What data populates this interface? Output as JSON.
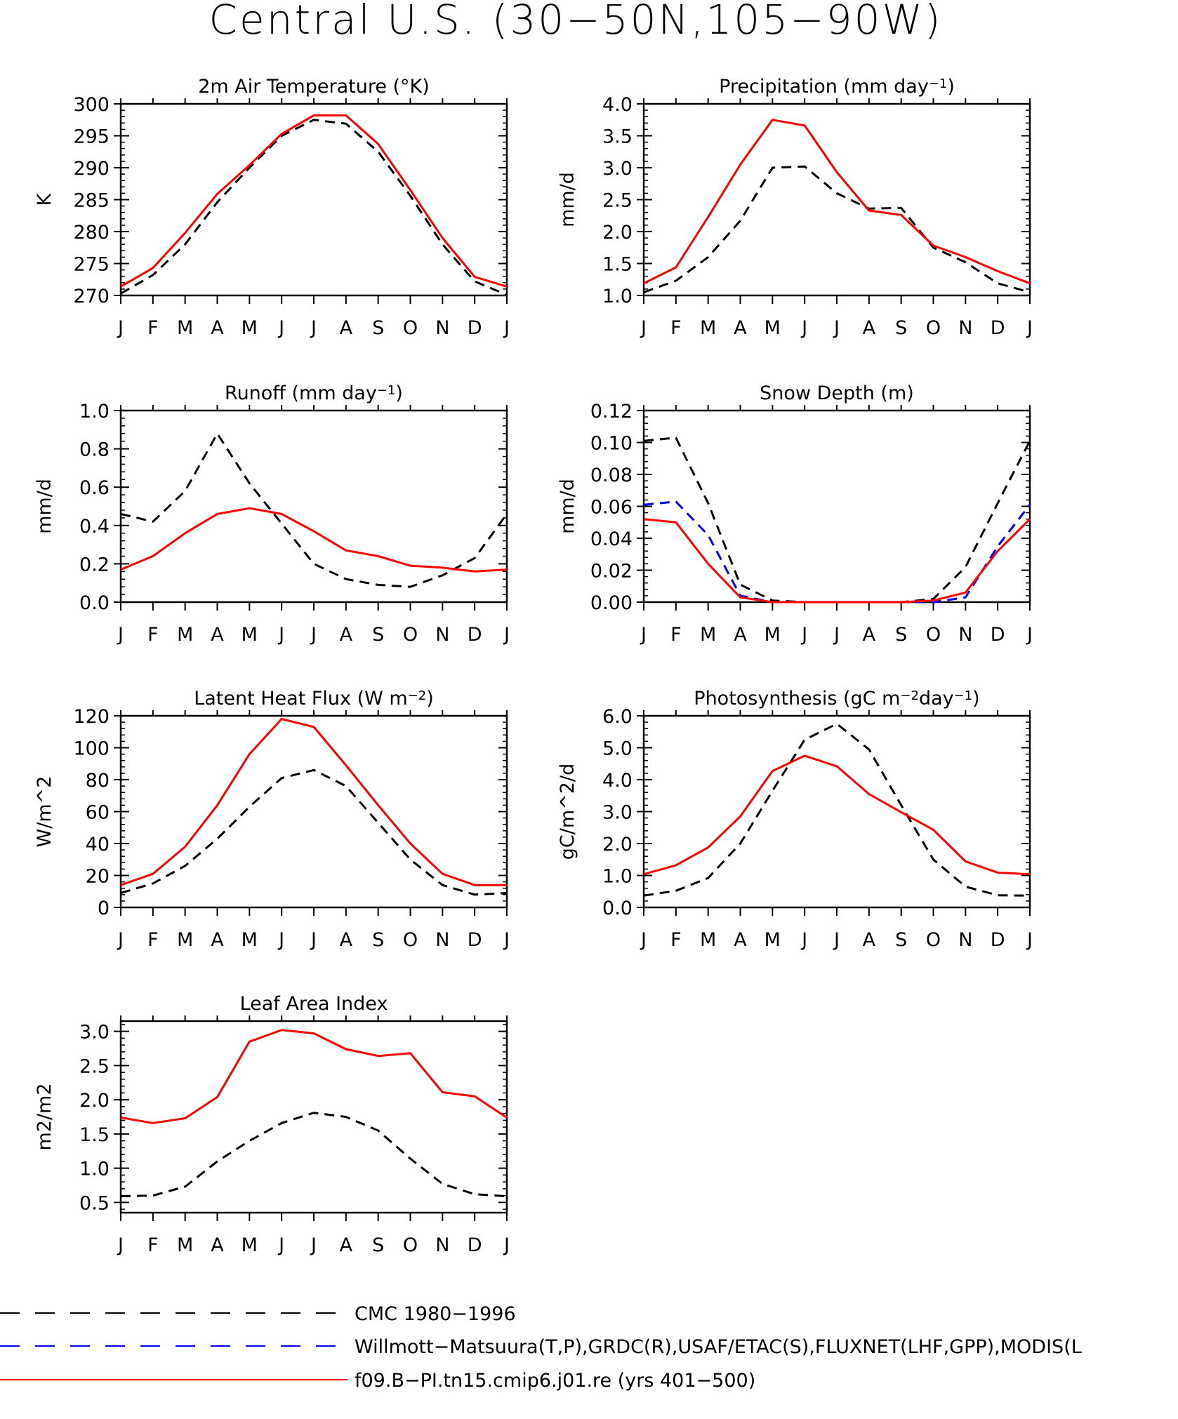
{
  "title": "Central U.S. (30−50N,105−90W)",
  "month_labels": [
    "J",
    "F",
    "M",
    "A",
    "M",
    "J",
    "J",
    "A",
    "S",
    "O",
    "N",
    "D",
    "J"
  ],
  "legend": [
    {
      "label": "CMC 1980−1996",
      "color": "#000000",
      "dash": true
    },
    {
      "label": "Willmott−Matsuura(T,P),GRDC(R),USAF/ETAC(S),FLUXNET(LHF,GPP),MODIS(L",
      "color": "#0000ff",
      "dash": true
    },
    {
      "label": "f09.B−PI.tn15.cmip6.j01.re (yrs 401−500)",
      "color": "#ff0000",
      "dash": false
    }
  ],
  "colors": {
    "cmc": "#000000",
    "obs": "#0000ff",
    "model": "#ff0000"
  },
  "chart_data": [
    {
      "type": "line",
      "id": "temp",
      "title": "2m Air Temperature (°K)",
      "ylabel": "K",
      "ylim": [
        270,
        300
      ],
      "yticks": [
        270,
        275,
        280,
        285,
        290,
        295,
        300
      ],
      "ytick_labels": [
        "270",
        "275",
        "280",
        "285",
        "290",
        "295",
        "300"
      ],
      "x": [
        "J",
        "F",
        "M",
        "A",
        "M",
        "J",
        "J",
        "A",
        "S",
        "O",
        "N",
        "D",
        "J"
      ],
      "series": [
        {
          "key": "cmc",
          "values": [
            270.3,
            273.2,
            278.0,
            284.6,
            290.0,
            295.0,
            297.5,
            296.9,
            292.5,
            285.6,
            278.0,
            272.2,
            270.1
          ]
        },
        {
          "key": "model",
          "values": [
            271.4,
            274.3,
            279.8,
            285.9,
            290.4,
            295.3,
            298.2,
            298.2,
            293.7,
            286.5,
            279.0,
            272.9,
            271.4
          ]
        }
      ]
    },
    {
      "type": "line",
      "id": "precip",
      "title": "Precipitation (mm day⁻¹)",
      "ylabel": "mm/d",
      "ylim": [
        1.0,
        4.0
      ],
      "yticks": [
        1.0,
        1.5,
        2.0,
        2.5,
        3.0,
        3.5,
        4.0
      ],
      "ytick_labels": [
        "1.0",
        "1.5",
        "2.0",
        "2.5",
        "3.0",
        "3.5",
        "4.0"
      ],
      "x": [
        "J",
        "F",
        "M",
        "A",
        "M",
        "J",
        "J",
        "A",
        "S",
        "O",
        "N",
        "D",
        "J"
      ],
      "series": [
        {
          "key": "cmc",
          "values": [
            1.05,
            1.23,
            1.6,
            2.17,
            3.0,
            3.02,
            2.6,
            2.36,
            2.37,
            1.75,
            1.52,
            1.19,
            1.05
          ]
        },
        {
          "key": "model",
          "values": [
            1.19,
            1.44,
            2.23,
            3.05,
            3.75,
            3.66,
            2.93,
            2.33,
            2.26,
            1.78,
            1.6,
            1.38,
            1.19
          ]
        }
      ]
    },
    {
      "type": "line",
      "id": "runoff",
      "title": "Runoff (mm day⁻¹)",
      "ylabel": "mm/d",
      "ylim": [
        0.0,
        1.0
      ],
      "yticks": [
        0.0,
        0.2,
        0.4,
        0.6,
        0.8,
        1.0
      ],
      "ytick_labels": [
        "0.0",
        "0.2",
        "0.4",
        "0.6",
        "0.8",
        "1.0"
      ],
      "x": [
        "J",
        "F",
        "M",
        "A",
        "M",
        "J",
        "J",
        "A",
        "S",
        "O",
        "N",
        "D",
        "J"
      ],
      "series": [
        {
          "key": "cmc",
          "values": [
            0.46,
            0.42,
            0.58,
            0.88,
            0.62,
            0.41,
            0.2,
            0.12,
            0.09,
            0.08,
            0.14,
            0.23,
            0.46
          ]
        },
        {
          "key": "model",
          "values": [
            0.17,
            0.24,
            0.36,
            0.46,
            0.49,
            0.46,
            0.37,
            0.27,
            0.24,
            0.19,
            0.18,
            0.16,
            0.17
          ]
        }
      ]
    },
    {
      "type": "line",
      "id": "snow",
      "title": "Snow Depth (m)",
      "ylabel": "mm/d",
      "ylim": [
        0.0,
        0.12
      ],
      "yticks": [
        0.0,
        0.02,
        0.04,
        0.06,
        0.08,
        0.1,
        0.12
      ],
      "ytick_labels": [
        "0.00",
        "0.02",
        "0.04",
        "0.06",
        "0.08",
        "0.10",
        "0.12"
      ],
      "x": [
        "J",
        "F",
        "M",
        "A",
        "M",
        "J",
        "J",
        "A",
        "S",
        "O",
        "N",
        "D",
        "J"
      ],
      "series": [
        {
          "key": "cmc",
          "values": [
            0.101,
            0.103,
            0.062,
            0.011,
            0.001,
            0.0,
            0.0,
            0.0,
            0.0,
            0.002,
            0.022,
            0.062,
            0.101
          ]
        },
        {
          "key": "obs",
          "values": [
            0.061,
            0.063,
            0.042,
            0.004,
            0.0,
            0.0,
            0.0,
            0.0,
            0.0,
            0.0,
            0.003,
            0.035,
            0.061
          ]
        },
        {
          "key": "model",
          "values": [
            0.052,
            0.05,
            0.024,
            0.003,
            0.0,
            0.0,
            0.0,
            0.0,
            0.0,
            0.001,
            0.006,
            0.032,
            0.052
          ]
        }
      ]
    },
    {
      "type": "line",
      "id": "lhf",
      "title": "Latent Heat Flux (W m⁻²)",
      "ylabel": "W/m^2",
      "ylim": [
        0,
        120
      ],
      "yticks": [
        0,
        20,
        40,
        60,
        80,
        100,
        120
      ],
      "ytick_labels": [
        "0",
        "20",
        "40",
        "60",
        "80",
        "100",
        "120"
      ],
      "x": [
        "J",
        "F",
        "M",
        "A",
        "M",
        "J",
        "J",
        "A",
        "S",
        "O",
        "N",
        "D",
        "J"
      ],
      "series": [
        {
          "key": "cmc",
          "values": [
            9,
            15,
            26,
            43,
            63,
            81,
            86,
            76,
            53,
            30,
            14,
            8,
            9
          ]
        },
        {
          "key": "model",
          "values": [
            14,
            21,
            38,
            64,
            96,
            118,
            113,
            89,
            64,
            40,
            21,
            14,
            14
          ]
        }
      ]
    },
    {
      "type": "line",
      "id": "gpp",
      "title": "Photosynthesis (gC m⁻²day⁻¹)",
      "ylabel": "gC/m^2/d",
      "ylim": [
        0.0,
        6.0
      ],
      "yticks": [
        0.0,
        1.0,
        2.0,
        3.0,
        4.0,
        5.0,
        6.0
      ],
      "ytick_labels": [
        "0.0",
        "1.0",
        "2.0",
        "3.0",
        "4.0",
        "5.0",
        "6.0"
      ],
      "x": [
        "J",
        "F",
        "M",
        "A",
        "M",
        "J",
        "J",
        "A",
        "S",
        "O",
        "N",
        "D",
        "J"
      ],
      "series": [
        {
          "key": "cmc",
          "values": [
            0.37,
            0.52,
            0.92,
            2.0,
            3.65,
            5.25,
            5.75,
            4.95,
            3.2,
            1.5,
            0.65,
            0.38,
            0.37
          ]
        },
        {
          "key": "model",
          "values": [
            1.04,
            1.32,
            1.88,
            2.85,
            4.27,
            4.75,
            4.42,
            3.55,
            2.98,
            2.43,
            1.44,
            1.09,
            1.04
          ]
        }
      ]
    },
    {
      "type": "line",
      "id": "lai",
      "title": "Leaf Area Index",
      "ylabel": "m2/m2",
      "ylim": [
        0.35,
        3.15
      ],
      "yticks": [
        0.5,
        1.0,
        1.5,
        2.0,
        2.5,
        3.0
      ],
      "ytick_labels": [
        "0.5",
        "1.0",
        "1.5",
        "2.0",
        "2.5",
        "3.0"
      ],
      "x": [
        "J",
        "F",
        "M",
        "A",
        "M",
        "J",
        "J",
        "A",
        "S",
        "O",
        "N",
        "D",
        "J"
      ],
      "series": [
        {
          "key": "cmc",
          "values": [
            0.59,
            0.6,
            0.73,
            1.1,
            1.4,
            1.66,
            1.81,
            1.75,
            1.55,
            1.14,
            0.77,
            0.62,
            0.59
          ]
        },
        {
          "key": "model",
          "values": [
            1.74,
            1.66,
            1.73,
            2.04,
            2.85,
            3.02,
            2.97,
            2.74,
            2.64,
            2.68,
            2.11,
            2.05,
            1.74
          ]
        }
      ]
    }
  ]
}
